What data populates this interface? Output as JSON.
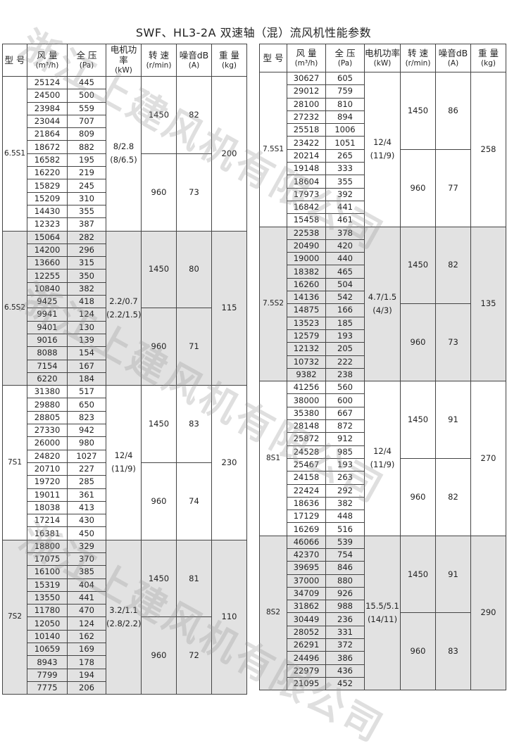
{
  "title": "SWF、HL3-2A 双速轴（混）流风机性能参数",
  "watermark": "浙江上建风机有限公司",
  "colors": {
    "shaded_group": "#e2e2e2",
    "border": "#444444"
  },
  "headers": [
    {
      "label": "型 号",
      "unit": ""
    },
    {
      "label": "风 量",
      "unit": "(m³/h)"
    },
    {
      "label": "全 压",
      "unit": "(Pa)"
    },
    {
      "label": "电机功率",
      "unit": "(kW)"
    },
    {
      "label": "转 速",
      "unit": "(r/min)"
    },
    {
      "label": "噪音dB",
      "unit": "(A)"
    },
    {
      "label": "重 量",
      "unit": "(kg)"
    }
  ],
  "tables": [
    {
      "groups": [
        {
          "model": "6.5S1",
          "power": "8/2.8",
          "power_alt": "(8/6.5)",
          "weight": "200",
          "speeds": [
            {
              "rpm": "1450",
              "noise": "82",
              "rows": [
                [
                  "25124",
                  "445"
                ],
                [
                  "24500",
                  "500"
                ],
                [
                  "23984",
                  "559"
                ],
                [
                  "23044",
                  "707"
                ],
                [
                  "21864",
                  "809"
                ],
                [
                  "18672",
                  "882"
                ]
              ]
            },
            {
              "rpm": "960",
              "noise": "73",
              "rows": [
                [
                  "16582",
                  "195"
                ],
                [
                  "16220",
                  "219"
                ],
                [
                  "15829",
                  "245"
                ],
                [
                  "15209",
                  "310"
                ],
                [
                  "14430",
                  "355"
                ],
                [
                  "12323",
                  "387"
                ]
              ]
            }
          ]
        },
        {
          "model": "6.5S2",
          "power": "2.2/0.7",
          "power_alt": "(2.2/1.5)",
          "weight": "115",
          "speeds": [
            {
              "rpm": "1450",
              "noise": "80",
              "rows": [
                [
                  "15064",
                  "282"
                ],
                [
                  "14200",
                  "296"
                ],
                [
                  "13660",
                  "315"
                ],
                [
                  "12255",
                  "350"
                ],
                [
                  "10840",
                  "382"
                ],
                [
                  "9425",
                  "418"
                ]
              ]
            },
            {
              "rpm": "960",
              "noise": "71",
              "rows": [
                [
                  "9941",
                  "124"
                ],
                [
                  "9401",
                  "130"
                ],
                [
                  "9016",
                  "139"
                ],
                [
                  "8088",
                  "154"
                ],
                [
                  "7154",
                  "167"
                ],
                [
                  "6220",
                  "184"
                ]
              ]
            }
          ]
        },
        {
          "model": "7S1",
          "power": "12/4",
          "power_alt": "(11/9)",
          "weight": "230",
          "speeds": [
            {
              "rpm": "1450",
              "noise": "83",
              "rows": [
                [
                  "31380",
                  "517"
                ],
                [
                  "29880",
                  "650"
                ],
                [
                  "28805",
                  "823"
                ],
                [
                  "27330",
                  "942"
                ],
                [
                  "26000",
                  "980"
                ],
                [
                  "24820",
                  "1027"
                ]
              ]
            },
            {
              "rpm": "960",
              "noise": "74",
              "rows": [
                [
                  "20710",
                  "227"
                ],
                [
                  "19720",
                  "285"
                ],
                [
                  "19011",
                  "361"
                ],
                [
                  "18038",
                  "413"
                ],
                [
                  "17214",
                  "430"
                ],
                [
                  "16381",
                  "450"
                ]
              ]
            }
          ]
        },
        {
          "model": "7S2",
          "power": "3.2/1.1",
          "power_alt": "(2.8/2.2)",
          "weight": "110",
          "speeds": [
            {
              "rpm": "1450",
              "noise": "81",
              "rows": [
                [
                  "18800",
                  "329"
                ],
                [
                  "17075",
                  "370"
                ],
                [
                  "16100",
                  "385"
                ],
                [
                  "15319",
                  "404"
                ],
                [
                  "13550",
                  "441"
                ],
                [
                  "11780",
                  "470"
                ]
              ]
            },
            {
              "rpm": "960",
              "noise": "72",
              "rows": [
                [
                  "12050",
                  "124"
                ],
                [
                  "10140",
                  "162"
                ],
                [
                  "10659",
                  "169"
                ],
                [
                  "8943",
                  "178"
                ],
                [
                  "7799",
                  "194"
                ],
                [
                  "7775",
                  "206"
                ]
              ]
            }
          ]
        }
      ]
    },
    {
      "groups": [
        {
          "model": "7.5S1",
          "power": "12/4",
          "power_alt": "(11/9)",
          "weight": "258",
          "speeds": [
            {
              "rpm": "1450",
              "noise": "86",
              "rows": [
                [
                  "30627",
                  "605"
                ],
                [
                  "29012",
                  "759"
                ],
                [
                  "28100",
                  "810"
                ],
                [
                  "27232",
                  "894"
                ],
                [
                  "25518",
                  "1006"
                ],
                [
                  "23422",
                  "1051"
                ]
              ]
            },
            {
              "rpm": "960",
              "noise": "77",
              "rows": [
                [
                  "20214",
                  "265"
                ],
                [
                  "19148",
                  "333"
                ],
                [
                  "18604",
                  "355"
                ],
                [
                  "17973",
                  "392"
                ],
                [
                  "16842",
                  "441"
                ],
                [
                  "15458",
                  "461"
                ]
              ]
            }
          ]
        },
        {
          "model": "7.5S2",
          "power": "4.7/1.5",
          "power_alt": "(4/3)",
          "weight": "135",
          "speeds": [
            {
              "rpm": "1450",
              "noise": "82",
              "rows": [
                [
                  "22538",
                  "378"
                ],
                [
                  "20490",
                  "420"
                ],
                [
                  "19000",
                  "440"
                ],
                [
                  "18382",
                  "465"
                ],
                [
                  "16260",
                  "504"
                ],
                [
                  "14136",
                  "542"
                ]
              ]
            },
            {
              "rpm": "960",
              "noise": "73",
              "rows": [
                [
                  "14875",
                  "166"
                ],
                [
                  "13523",
                  "185"
                ],
                [
                  "12579",
                  "193"
                ],
                [
                  "12132",
                  "205"
                ],
                [
                  "10732",
                  "222"
                ],
                [
                  "9382",
                  "238"
                ]
              ]
            }
          ]
        },
        {
          "model": "8S1",
          "power": "12/4",
          "power_alt": "(11/9)",
          "weight": "270",
          "speeds": [
            {
              "rpm": "1450",
              "noise": "91",
              "rows": [
                [
                  "41256",
                  "560"
                ],
                [
                  "38000",
                  "600"
                ],
                [
                  "35380",
                  "667"
                ],
                [
                  "28148",
                  "872"
                ],
                [
                  "25872",
                  "912"
                ],
                [
                  "24528",
                  "985"
                ]
              ]
            },
            {
              "rpm": "960",
              "noise": "82",
              "rows": [
                [
                  "25467",
                  "193"
                ],
                [
                  "24158",
                  "263"
                ],
                [
                  "22424",
                  "292"
                ],
                [
                  "18636",
                  "382"
                ],
                [
                  "17129",
                  "448"
                ],
                [
                  "16269",
                  "516"
                ]
              ]
            }
          ]
        },
        {
          "model": "8S2",
          "power": "15.5/5.1",
          "power_alt": "(14/11)",
          "weight": "290",
          "speeds": [
            {
              "rpm": "1450",
              "noise": "91",
              "rows": [
                [
                  "46066",
                  "539"
                ],
                [
                  "42370",
                  "754"
                ],
                [
                  "39695",
                  "846"
                ],
                [
                  "37000",
                  "880"
                ],
                [
                  "34709",
                  "926"
                ],
                [
                  "31862",
                  "988"
                ]
              ]
            },
            {
              "rpm": "960",
              "noise": "83",
              "rows": [
                [
                  "30449",
                  "236"
                ],
                [
                  "28052",
                  "331"
                ],
                [
                  "26291",
                  "372"
                ],
                [
                  "24496",
                  "386"
                ],
                [
                  "22979",
                  "436"
                ],
                [
                  "21095",
                  "452"
                ]
              ]
            }
          ]
        }
      ]
    }
  ]
}
